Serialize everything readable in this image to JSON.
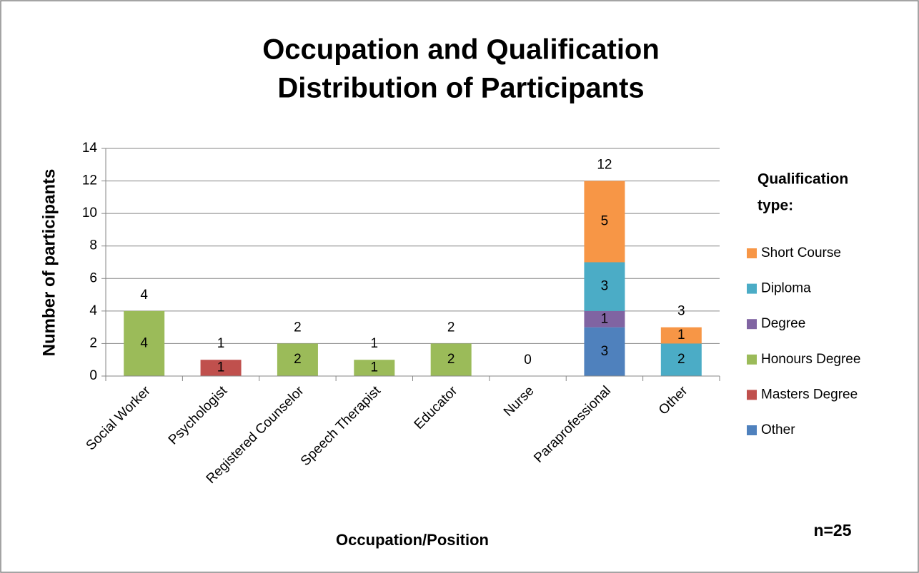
{
  "chart_data": {
    "type": "stacked_bar",
    "title": [
      "Occupation and Qualification",
      "Distribution of Participants"
    ],
    "x_label": "Occupation/Position",
    "y_label": "Number of participants",
    "categories": [
      "Social Worker",
      "Psychologist",
      "Registered Counselor",
      "Speech Therapist",
      "Educator",
      "Nurse",
      "Paraprofessional",
      "Other"
    ],
    "series": [
      {
        "name": "Other",
        "color": "#4f81bd",
        "values": [
          null,
          null,
          null,
          null,
          null,
          null,
          3,
          null
        ]
      },
      {
        "name": "Masters Degree",
        "color": "#c0504d",
        "values": [
          null,
          1,
          null,
          null,
          null,
          null,
          null,
          null
        ]
      },
      {
        "name": "Honours Degree",
        "color": "#9bbb59",
        "values": [
          4,
          null,
          2,
          1,
          2,
          null,
          null,
          null
        ]
      },
      {
        "name": "Degree",
        "color": "#8064a2",
        "values": [
          null,
          null,
          null,
          null,
          null,
          null,
          1,
          null
        ]
      },
      {
        "name": "Diploma",
        "color": "#4bacc6",
        "values": [
          null,
          null,
          null,
          null,
          null,
          null,
          3,
          2
        ]
      },
      {
        "name": "Short Course",
        "color": "#f79646",
        "values": [
          null,
          null,
          null,
          null,
          null,
          null,
          5,
          1
        ]
      }
    ],
    "totals": [
      4,
      1,
      2,
      1,
      2,
      0,
      12,
      3
    ],
    "legend_title": [
      "Qualification",
      "type:"
    ],
    "annotation": "n=25",
    "ylim": [
      0,
      14
    ],
    "yticks": [
      0,
      2,
      4,
      6,
      8,
      10,
      12,
      14
    ],
    "grid": true,
    "legend": "right"
  }
}
